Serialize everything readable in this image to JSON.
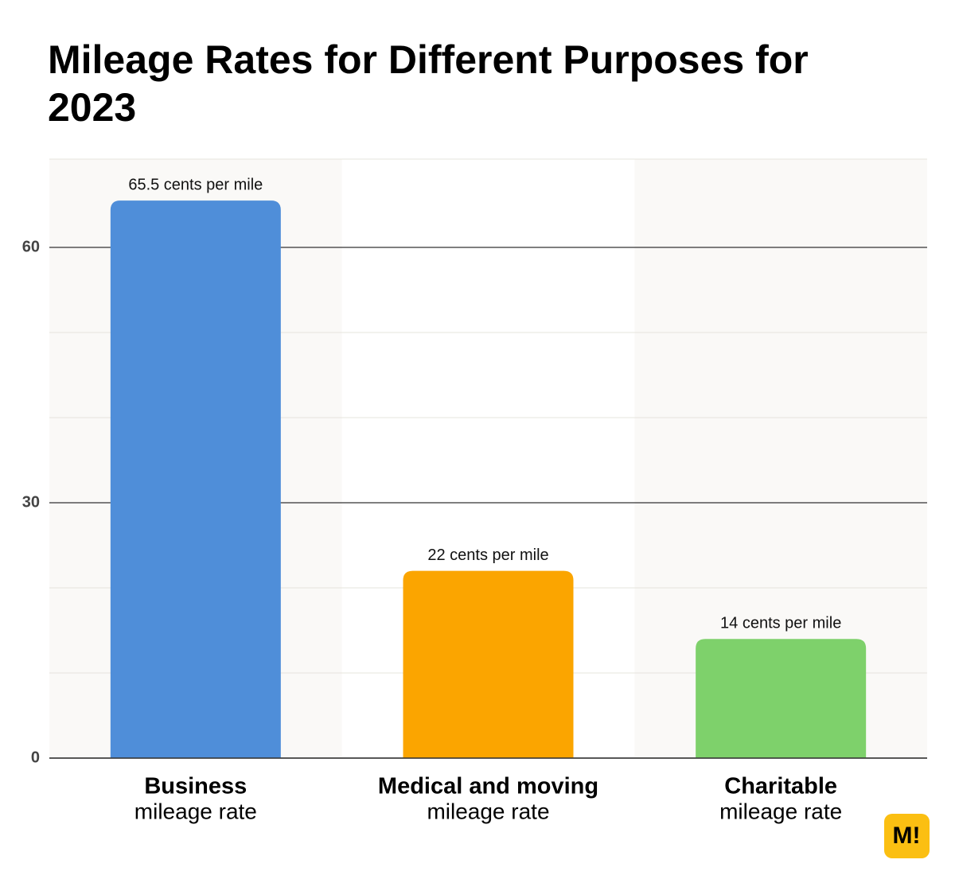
{
  "chart_data": {
    "type": "bar",
    "title": "Mileage Rates for Different Purposes for 2023",
    "categories": [
      "Business",
      "Medical and moving",
      "Charitable"
    ],
    "category_sublabels": [
      "mileage rate",
      "mileage rate",
      "mileage rate"
    ],
    "values": [
      65.5,
      22,
      14
    ],
    "value_labels": [
      "65.5 cents per mile",
      "22 cents per mile",
      "14 cents per mile"
    ],
    "colors": [
      "#4f8ed9",
      "#fba500",
      "#7ed16b"
    ],
    "ylim": [
      0,
      70
    ],
    "yticks": [
      0,
      30,
      60
    ],
    "minor_yticks": [
      10,
      20,
      40,
      50
    ],
    "grid": true
  },
  "logo": "M!"
}
